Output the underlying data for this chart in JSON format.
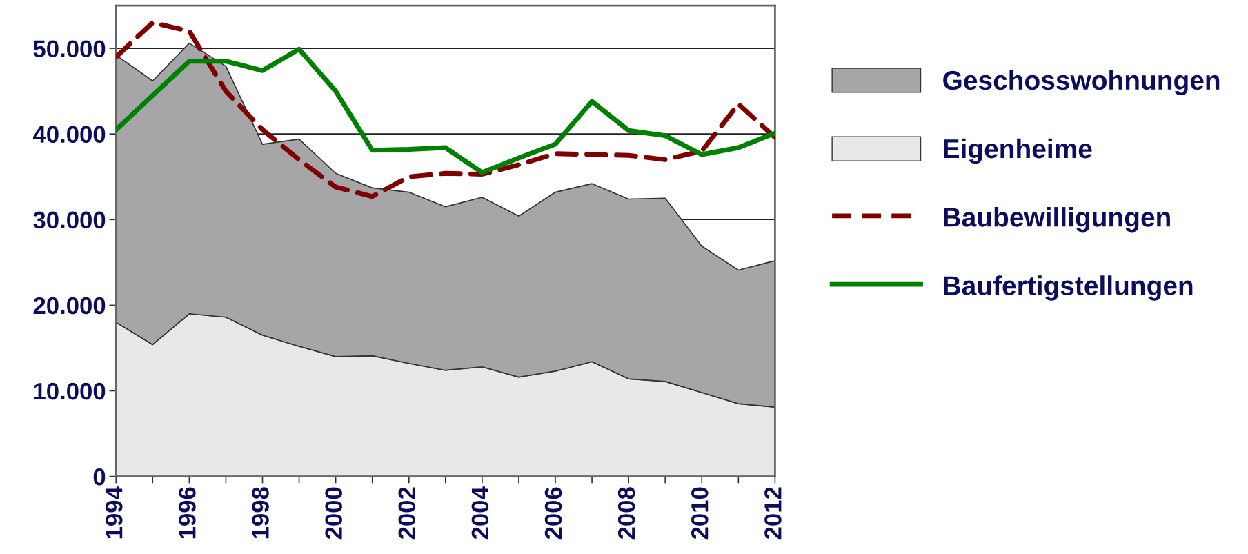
{
  "chart_data": {
    "type": "area",
    "stacked": true,
    "x": [
      1994,
      1995,
      1996,
      1997,
      1998,
      1999,
      2000,
      2001,
      2002,
      2003,
      2004,
      2005,
      2006,
      2007,
      2008,
      2009,
      2010,
      2011,
      2012
    ],
    "series": [
      {
        "name": "Eigenheime",
        "color": "#e6e8ea",
        "values": [
          18000,
          15400,
          19000,
          18600,
          16500,
          15200,
          14000,
          14100,
          13200,
          12400,
          12800,
          11600,
          12300,
          13400,
          11400,
          11100,
          9800,
          8500,
          8100
        ]
      },
      {
        "name": "Geschosswohnungen",
        "color": "#a6a6a8",
        "values": [
          31200,
          30800,
          31600,
          29300,
          22300,
          24200,
          21400,
          19600,
          20000,
          19100,
          19800,
          18800,
          20900,
          20800,
          21000,
          21400,
          17100,
          15600,
          17100
        ]
      },
      {
        "name": "Baubewilligungen",
        "type": "line",
        "color": "#800000",
        "line_style": "dashed",
        "values": [
          49000,
          53000,
          52000,
          45000,
          40500,
          37000,
          33800,
          32700,
          35000,
          35400,
          35300,
          36400,
          37700,
          37600,
          37500,
          37000,
          38000,
          43500,
          39600
        ]
      },
      {
        "name": "Baufertigstellungen",
        "type": "line",
        "color": "#008000",
        "line_style": "solid",
        "values": [
          40500,
          44500,
          48500,
          48500,
          47400,
          49900,
          45000,
          38100,
          38200,
          38400,
          35500,
          37200,
          38800,
          43800,
          40400,
          39800,
          37600,
          38400,
          40100
        ]
      }
    ],
    "xlim": [
      1994,
      2012
    ],
    "xticks": [
      1994,
      {
        "value": 1995,
        "label": null
      },
      1996,
      {
        "value": 1997,
        "label": null
      },
      1998,
      {
        "value": 1999,
        "label": null
      },
      2000,
      {
        "value": 2001,
        "label": null
      },
      2002,
      {
        "value": 2003,
        "label": null
      },
      2004,
      {
        "value": 2005,
        "label": null
      },
      2006,
      {
        "value": 2007,
        "label": null
      },
      2008,
      {
        "value": 2009,
        "label": null
      },
      2010,
      {
        "value": 2011,
        "label": null
      },
      2012
    ],
    "ylim": [
      0,
      55000
    ],
    "yticks": [
      0,
      {
        "value": 10000,
        "label": "10.000"
      },
      {
        "value": 20000,
        "label": "20.000"
      },
      {
        "value": 30000,
        "label": "30.000"
      },
      {
        "value": 40000,
        "label": "40.000"
      },
      {
        "value": 50000,
        "label": "50.000"
      }
    ],
    "grid": "y",
    "legend": "right"
  }
}
